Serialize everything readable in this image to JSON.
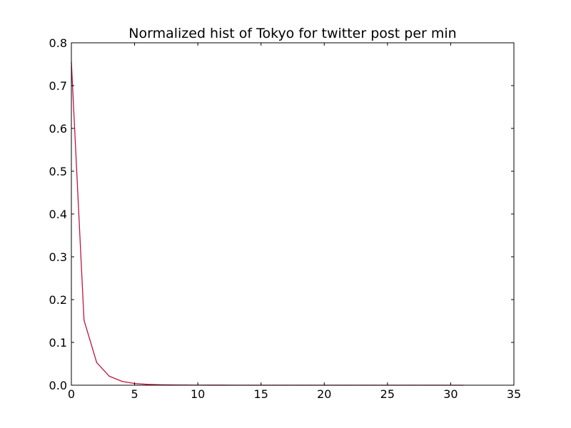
{
  "chart_data": {
    "type": "line",
    "title": "Normalized hist of Tokyo for twitter post per min",
    "xlabel": "",
    "ylabel": "",
    "xlim": [
      0,
      35
    ],
    "ylim": [
      0,
      0.8
    ],
    "x_ticks": [
      0,
      5,
      10,
      15,
      20,
      25,
      30,
      35
    ],
    "x_tick_labels": [
      "0",
      "5",
      "10",
      "15",
      "20",
      "25",
      "30",
      "35"
    ],
    "y_ticks": [
      0,
      0.1,
      0.2,
      0.3,
      0.4,
      0.5,
      0.6,
      0.7,
      0.8
    ],
    "y_tick_labels": [
      "0.0",
      "0.1",
      "0.2",
      "0.3",
      "0.4",
      "0.5",
      "0.6",
      "0.7",
      "0.8"
    ],
    "grid": false,
    "legend": "none",
    "series": [
      {
        "color": "#c0143c",
        "x": [
          0,
          1,
          2,
          3,
          4,
          5,
          6,
          7,
          8,
          9,
          10,
          11,
          12,
          13,
          14,
          15,
          16,
          17,
          18,
          19,
          20,
          21,
          22,
          23,
          24,
          25,
          26,
          27,
          28,
          29,
          30,
          31
        ],
        "y": [
          0.755,
          0.152,
          0.053,
          0.021,
          0.009,
          0.004,
          0.002,
          0.001,
          0.0005,
          0.0003,
          0.0002,
          0.0001,
          0.0001,
          0.0,
          0.0,
          0.0,
          0.0,
          0.0,
          0.0,
          0.0,
          0.0,
          0.0,
          0.0,
          0.0,
          0.0,
          0.0,
          0.0,
          0.0,
          0.0,
          0.0,
          0.0,
          0.0
        ]
      }
    ]
  }
}
